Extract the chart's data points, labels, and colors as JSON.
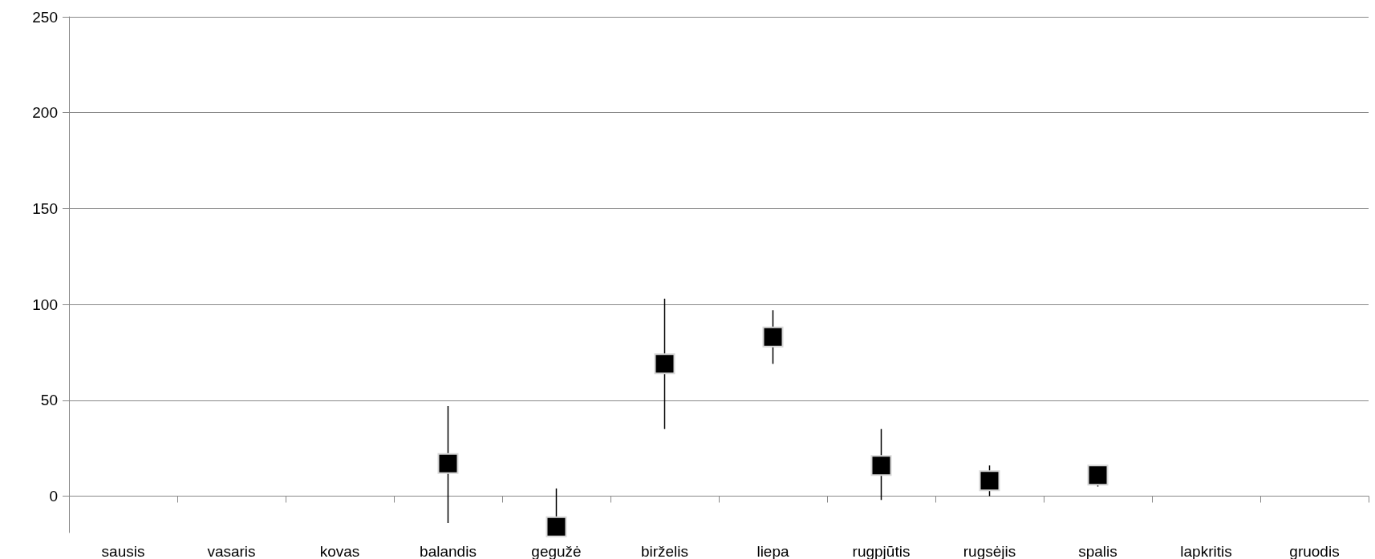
{
  "chart_data": {
    "type": "scatter",
    "categories": [
      "sausis",
      "vasaris",
      "kovas",
      "balandis",
      "gegužė",
      "birželis",
      "liepa",
      "rugpjūtis",
      "rugsėjis",
      "spalis",
      "lapkritis",
      "gruodis"
    ],
    "values": [
      null,
      null,
      null,
      17,
      -16,
      69,
      83,
      16,
      8,
      11,
      null,
      null
    ],
    "errors": [
      null,
      null,
      null,
      [
        -14,
        47
      ],
      [
        -16,
        4
      ],
      [
        35,
        103
      ],
      [
        69,
        97
      ],
      [
        -2,
        35
      ],
      [
        0,
        16
      ],
      [
        5,
        16
      ],
      null,
      null
    ],
    "color": "#000000",
    "marker": "square",
    "grid": "y",
    "ylim": [
      -19,
      250
    ],
    "yticks": [
      0,
      50,
      100,
      150,
      200,
      250
    ]
  }
}
